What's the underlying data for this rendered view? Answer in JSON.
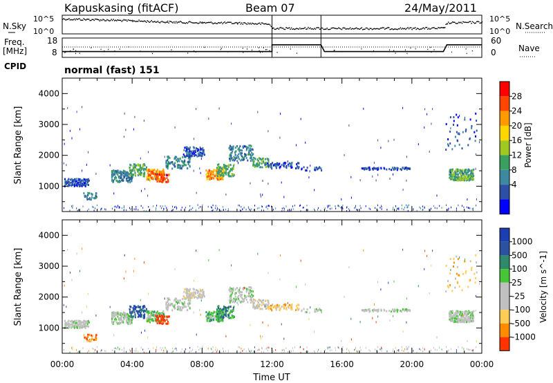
{
  "header": {
    "station": "Kapuskasing (fitACF)",
    "beam": "Beam 07",
    "date": "24/May/2011"
  },
  "panel_labels": {
    "nsky": "N.Sky",
    "nsearch": "N.Search",
    "freq_line1": "Freq.",
    "freq_line2": "[MHz]",
    "nave": "Nave",
    "cpid": "CPID",
    "cpid_value": "normal (fast) 151"
  },
  "colors": {
    "power": [
      "#0000ff",
      "#2d4fa5",
      "#3d8aa0",
      "#3aa060",
      "#a0c820",
      "#ffd700",
      "#ff9a00",
      "#ff4500",
      "#ff0000"
    ],
    "velocity": [
      "#1b3fb0",
      "#2b52a0",
      "#2f8a6c",
      "#46c637",
      "#c0c0c0",
      "#c0c0c0",
      "#ffcc55",
      "#ff8c00",
      "#ff3300"
    ]
  },
  "chart_data": [
    {
      "type": "line",
      "name": "status",
      "left_ticks": [
        "10^5",
        "10^0"
      ],
      "right_ticks": [
        "10^5",
        "10^0"
      ],
      "freq_ticks": [
        "18",
        "8"
      ],
      "nave_ticks": [
        "60",
        "0"
      ],
      "nsky_profile": [
        {
          "t": 0.0,
          "v": 0.82
        },
        {
          "t": 2.0,
          "v": 0.78
        },
        {
          "t": 4.0,
          "v": 0.72
        },
        {
          "t": 6.0,
          "v": 0.66
        },
        {
          "t": 8.0,
          "v": 0.62
        },
        {
          "t": 10.0,
          "v": 0.6
        },
        {
          "t": 11.8,
          "v": 0.55
        },
        {
          "t": 12.0,
          "v": 0.32
        },
        {
          "t": 14.8,
          "v": 0.32
        },
        {
          "t": 15.0,
          "v": 0.3
        },
        {
          "t": 21.8,
          "v": 0.32
        },
        {
          "t": 22.0,
          "v": 0.6
        },
        {
          "t": 24.0,
          "v": 0.65
        }
      ],
      "freq_profile": [
        {
          "t": 0.0,
          "v": 11.0
        },
        {
          "t": 12.0,
          "v": 11.0
        },
        {
          "t": 12.0,
          "v": 14.5
        },
        {
          "t": 14.8,
          "v": 14.5
        },
        {
          "t": 15.0,
          "v": 11.0
        },
        {
          "t": 21.8,
          "v": 11.0
        },
        {
          "t": 22.0,
          "v": 14.5
        },
        {
          "t": 24.0,
          "v": 14.5
        }
      ]
    },
    {
      "type": "heatmap",
      "name": "power",
      "ylabel": "Slant Range [km]",
      "colorbar_label": "Power [dB]",
      "colorbar_ticks": [
        "28",
        "24",
        "20",
        "16",
        "12",
        "8",
        "4"
      ],
      "y_ticks": [
        "4000",
        "3000",
        "2000",
        "1000"
      ],
      "ylim": [
        180,
        4500
      ],
      "xlim": [
        0,
        24
      ],
      "x_ticks": [
        "00:00",
        "04:00",
        "08:00",
        "12:00",
        "16:00",
        "20:00",
        "00:00"
      ]
    },
    {
      "type": "heatmap",
      "name": "velocity",
      "ylabel": "Slant Range [km]",
      "colorbar_label": "Velocity [m s^-1]",
      "colorbar_ticks": [
        "1000",
        "500",
        "100",
        "25",
        "-25",
        "-100",
        "-500",
        "-1000"
      ],
      "y_ticks": [
        "4000",
        "3000",
        "2000",
        "1000"
      ],
      "ylim": [
        180,
        4500
      ],
      "xlim": [
        0,
        24
      ],
      "xlabel": "Time UT",
      "x_ticks": [
        "00:00",
        "04:00",
        "08:00",
        "12:00",
        "16:00",
        "20:00",
        "00:00"
      ]
    }
  ]
}
